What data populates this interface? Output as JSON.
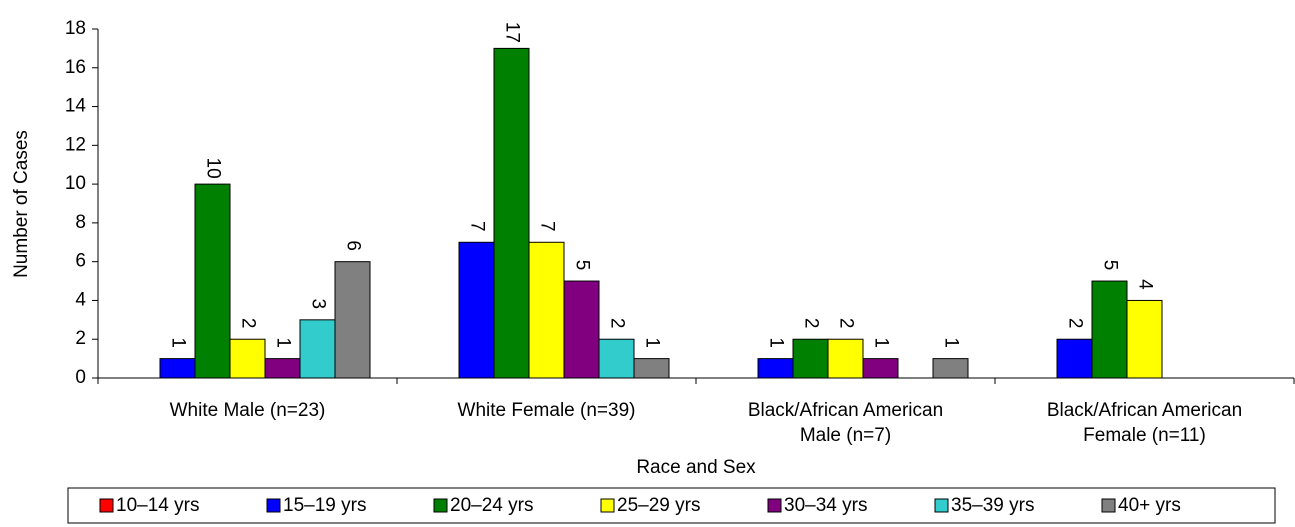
{
  "chart_data": {
    "type": "bar",
    "y_label": "Number of Cases",
    "x_label": "Race and Sex",
    "categories": [
      "White Male (n=23)",
      "White Female (n=39)",
      "Black/African American\nMale (n=7)",
      "Black/African American\nFemale (n=11)"
    ],
    "series": [
      {
        "name": "10–14 yrs",
        "color": "#ff0000",
        "values": [
          null,
          null,
          null,
          null
        ]
      },
      {
        "name": "15–19 yrs",
        "color": "#0000ff",
        "values": [
          1,
          7,
          1,
          2
        ]
      },
      {
        "name": "20–24 yrs",
        "color": "#008000",
        "values": [
          10,
          17,
          2,
          5
        ]
      },
      {
        "name": "25–29 yrs",
        "color": "#ffff00",
        "values": [
          2,
          7,
          2,
          4
        ]
      },
      {
        "name": "30–34 yrs",
        "color": "#800080",
        "values": [
          1,
          5,
          1,
          null
        ]
      },
      {
        "name": "35–39 yrs",
        "color": "#33cccc",
        "values": [
          3,
          2,
          null,
          null
        ]
      },
      {
        "name": "40+ yrs",
        "color": "#808080",
        "values": [
          6,
          1,
          1,
          null
        ]
      }
    ],
    "ylim": [
      0,
      18
    ],
    "yticks": [
      0,
      2,
      4,
      6,
      8,
      10,
      12,
      14,
      16,
      18
    ],
    "legend": "bottom"
  }
}
